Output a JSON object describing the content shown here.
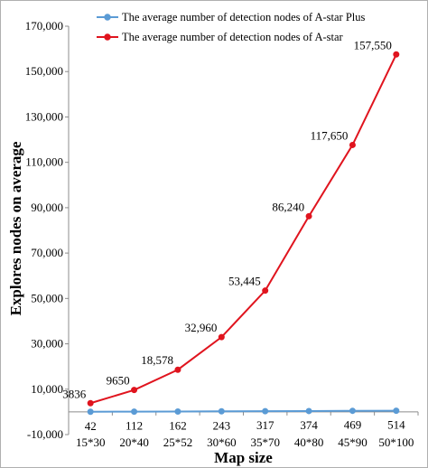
{
  "chart_data": {
    "type": "line",
    "categories": [
      "15*30",
      "20*40",
      "25*52",
      "30*60",
      "35*70",
      "40*80",
      "45*90",
      "50*100"
    ],
    "xlabel": "Map size",
    "ylabel": "Explores nodes on average",
    "ylim": [
      -10000,
      170000
    ],
    "yticks": [
      -10000,
      10000,
      30000,
      50000,
      70000,
      90000,
      110000,
      130000,
      150000,
      170000
    ],
    "ytick_labels": [
      "-10,000",
      "10,000",
      "30,000",
      "50,000",
      "70,000",
      "90,000",
      "110,000",
      "130,000",
      "150,000",
      "170,000"
    ],
    "grid": false,
    "legend_position": "top",
    "series": [
      {
        "name": "The average number of detection nodes of A-star Plus",
        "color": "#5b9bd5",
        "values": [
          42,
          112,
          162,
          243,
          317,
          374,
          469,
          514
        ],
        "labels": [
          "42",
          "112",
          "162",
          "243",
          "317",
          "374",
          "469",
          "514"
        ],
        "label_position": "below-axis"
      },
      {
        "name": "The average number of detection nodes of A-star",
        "color": "#e0141e",
        "values": [
          3836,
          9650,
          18578,
          32960,
          53445,
          86240,
          117650,
          157550
        ],
        "labels": [
          "3836",
          "9650",
          "18,578",
          "32,960",
          "53,445",
          "86,240",
          "117,650",
          "157,550"
        ],
        "label_position": "above-left"
      }
    ]
  }
}
